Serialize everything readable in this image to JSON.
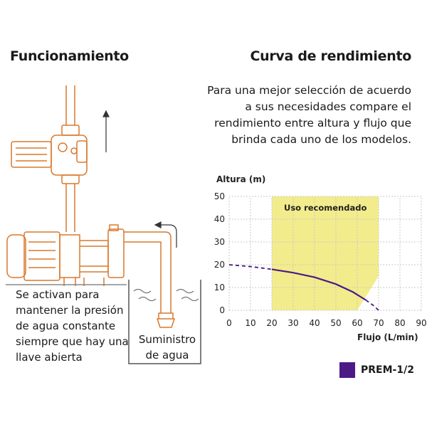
{
  "left": {
    "title": "Funcionamiento",
    "caption": "Se activan para mantener la presión de agua constante siempre que hay una llave abierta",
    "supply_label": "Suministro de agua"
  },
  "right": {
    "title": "Curva de rendimiento",
    "description": "Para una mejor selección de acuerdo a sus necesidades compare el rendimiento entre altura y flujo que brinda cada uno de los modelos."
  },
  "colors": {
    "pump_line": "#d9782d",
    "recommended_zone": "#f3ec8c",
    "curve": "#4b1a87",
    "grid": "#c8c8c8"
  },
  "chart_data": {
    "type": "line",
    "xlabel": "Flujo (L/min)",
    "ylabel": "Altura (m)",
    "xlim": [
      0,
      90
    ],
    "ylim": [
      0,
      50
    ],
    "x_ticks": [
      0,
      10,
      20,
      30,
      40,
      50,
      60,
      70,
      80,
      90
    ],
    "y_ticks": [
      0,
      10,
      20,
      30,
      40,
      50
    ],
    "grid": true,
    "recommended_zone": {
      "label": "Uso recomendado",
      "x": [
        20,
        70
      ],
      "y": [
        0,
        50
      ],
      "corner_cut": {
        "from": [
          60,
          0
        ],
        "to": [
          70,
          15
        ]
      }
    },
    "series": [
      {
        "name": "PREM-1/2",
        "color": "#4b1a87",
        "solid_x": [
          20,
          30,
          40,
          50,
          58,
          64
        ],
        "solid_y": [
          18,
          16.5,
          14.5,
          11.5,
          8,
          4.5
        ],
        "dashed_before": {
          "x": [
            0,
            10,
            20
          ],
          "y": [
            20,
            19.2,
            18
          ]
        },
        "dashed_after": {
          "x": [
            64,
            68,
            70
          ],
          "y": [
            4.5,
            1.8,
            0
          ]
        }
      }
    ],
    "legend": {
      "position": "bottom-right"
    }
  }
}
